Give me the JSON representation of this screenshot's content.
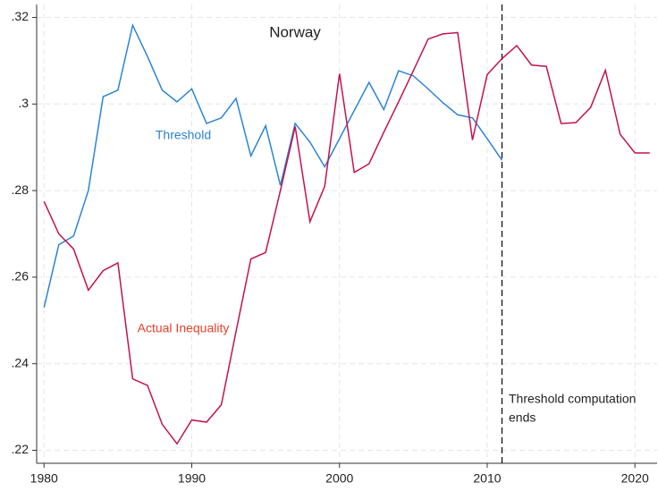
{
  "chart_data": {
    "type": "line",
    "x": [
      1980,
      1981,
      1982,
      1983,
      1984,
      1985,
      1986,
      1987,
      1988,
      1989,
      1990,
      1991,
      1992,
      1993,
      1994,
      1995,
      1996,
      1997,
      1998,
      1999,
      2000,
      2001,
      2002,
      2003,
      2004,
      2005,
      2006,
      2007,
      2008,
      2009,
      2010,
      2011,
      2012,
      2013,
      2014,
      2015,
      2016,
      2017,
      2018,
      2019,
      2020,
      2021
    ],
    "series": [
      {
        "name": "Threshold",
        "color": "#2a84d8",
        "values": [
          0.253,
          0.2675,
          0.2695,
          0.28,
          0.3017,
          0.3032,
          0.3182,
          0.311,
          0.3032,
          0.3005,
          0.3035,
          0.2955,
          0.2968,
          0.3013,
          0.288,
          0.295,
          0.2812,
          0.2955,
          0.2912,
          0.2855,
          0.292,
          0.2985,
          0.305,
          0.2987,
          0.3077,
          0.3065,
          0.3035,
          0.3003,
          0.2975,
          0.2968,
          0.292,
          0.287,
          null,
          null,
          null,
          null,
          null,
          null,
          null,
          null,
          null,
          null
        ]
      },
      {
        "name": "Actual Inequality",
        "color": "#c4124f",
        "values": [
          0.2775,
          0.27,
          0.2665,
          0.257,
          0.2615,
          0.2633,
          0.2365,
          0.235,
          0.226,
          0.2215,
          0.227,
          0.2265,
          0.2305,
          0.2475,
          0.2642,
          0.2657,
          0.28,
          0.2948,
          0.2728,
          0.281,
          0.307,
          0.2842,
          0.2862,
          0.2935,
          0.3005,
          0.3077,
          0.315,
          0.3162,
          0.3165,
          0.2917,
          0.3068,
          0.3105,
          0.3135,
          0.309,
          0.3087,
          0.2955,
          0.2957,
          0.2992,
          0.3078,
          0.293,
          0.2887,
          0.2887
        ]
      }
    ],
    "annotations": [
      "Norway",
      "Threshold computation",
      "ends"
    ],
    "vline": 2011,
    "xlim": [
      1979.5,
      2021.5
    ],
    "xticks": [
      1980,
      1990,
      2000,
      2010,
      2020
    ],
    "ylim": [
      0.217,
      0.323
    ],
    "yticks": [
      {
        "value": 0.22,
        "label": ".22"
      },
      {
        "value": 0.24,
        "label": ".24"
      },
      {
        "value": 0.26,
        "label": ".26"
      },
      {
        "value": 0.28,
        "label": ".28"
      },
      {
        "value": 0.3,
        "label": ".3"
      },
      {
        "value": 0.32,
        "label": ".32"
      }
    ],
    "grid": true
  }
}
